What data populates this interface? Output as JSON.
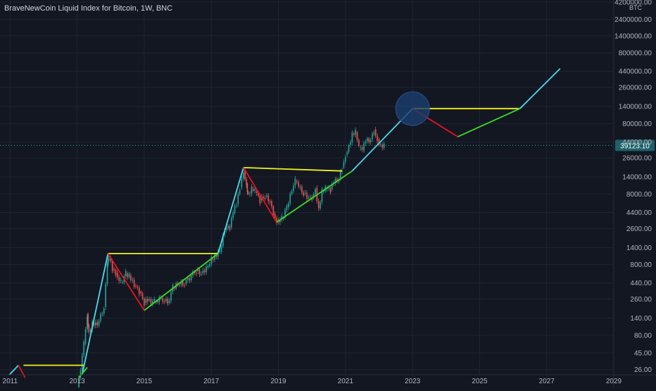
{
  "chart_data": {
    "type": "line",
    "title": "BraveNewCoin Liquid Index for Bitcoin, 1W, BNC",
    "currency_label": "BTC",
    "scale": "log",
    "x_ticks": [
      "2011",
      "2013",
      "2015",
      "2017",
      "2019",
      "2021",
      "2023",
      "2025",
      "2027",
      "2029"
    ],
    "y_ticks": [
      "4200000.00",
      "2400000.00",
      "1400000.00",
      "800000.00",
      "440000.00",
      "260000.00",
      "140000.00",
      "80000.00",
      "44000.00",
      "26000.00",
      "14000.00",
      "8000.00",
      "4400.00",
      "2600.00",
      "1400.00",
      "800.00",
      "440.00",
      "260.00",
      "140.00",
      "80.00",
      "45.00",
      "26.00"
    ],
    "last_price": "39123.10",
    "ylim": [
      22,
      4500000
    ],
    "xlim": [
      2010.7,
      2029.0
    ],
    "colors": {
      "background": "#131722",
      "grid": "#1f2433",
      "axis_text": "#b2b5be",
      "up_candle": "#26a69a",
      "down_candle": "#ef5350",
      "bull_line": "#4dd9ec",
      "bear_line": "#e8121e",
      "accum_line": "#3bdc24",
      "ath_line": "#f2f21a",
      "price_tag": "#1e6069",
      "circle": "#1c3f6e"
    },
    "series": [
      {
        "role": "bull-run",
        "color": "#4dd9ec",
        "points": [
          [
            2010.98,
            22
          ],
          [
            2011.25,
            30
          ]
        ]
      },
      {
        "role": "bear-market",
        "color": "#e8121e",
        "points": [
          [
            2011.25,
            30
          ],
          [
            2011.45,
            20
          ]
        ]
      },
      {
        "role": "bull-run",
        "color": "#4dd9ec",
        "points": [
          [
            2013.15,
            22
          ],
          [
            2013.92,
            1150
          ]
        ]
      },
      {
        "role": "accumulation",
        "color": "#3bdc24",
        "points": [
          [
            2013.05,
            20
          ],
          [
            2013.3,
            28
          ]
        ]
      },
      {
        "role": "ath-level",
        "color": "#f2f21a",
        "points": [
          [
            2011.4,
            30
          ],
          [
            2013.2,
            30
          ]
        ]
      },
      {
        "role": "ath-level",
        "color": "#f2f21a",
        "points": [
          [
            2013.92,
            1150
          ],
          [
            2017.2,
            1150
          ]
        ]
      },
      {
        "role": "bear-market",
        "color": "#e8121e",
        "points": [
          [
            2013.92,
            1150
          ],
          [
            2015.0,
            180
          ]
        ]
      },
      {
        "role": "accumulation",
        "color": "#3bdc24",
        "points": [
          [
            2015.0,
            180
          ],
          [
            2017.2,
            1150
          ]
        ]
      },
      {
        "role": "bull-run",
        "color": "#4dd9ec",
        "points": [
          [
            2017.2,
            1150
          ],
          [
            2017.96,
            19000
          ]
        ]
      },
      {
        "role": "ath-level",
        "color": "#f2f21a",
        "points": [
          [
            2017.96,
            19000
          ],
          [
            2020.9,
            17000
          ]
        ]
      },
      {
        "role": "bear-market",
        "color": "#e8121e",
        "points": [
          [
            2017.96,
            19000
          ],
          [
            2018.95,
            3200
          ]
        ]
      },
      {
        "role": "accumulation",
        "color": "#3bdc24",
        "points": [
          [
            2018.95,
            3200
          ],
          [
            2021.2,
            17000
          ]
        ]
      },
      {
        "role": "bull-run",
        "color": "#4dd9ec",
        "points": [
          [
            2021.2,
            17000
          ],
          [
            2023.0,
            130000
          ]
        ]
      },
      {
        "role": "ath-level",
        "color": "#f2f21a",
        "points": [
          [
            2023.0,
            130000
          ],
          [
            2026.2,
            130000
          ]
        ]
      },
      {
        "role": "bear-market",
        "color": "#e8121e",
        "points": [
          [
            2023.0,
            130000
          ],
          [
            2024.35,
            52000
          ]
        ]
      },
      {
        "role": "accumulation",
        "color": "#3bdc24",
        "points": [
          [
            2024.35,
            52000
          ],
          [
            2026.2,
            130000
          ]
        ]
      },
      {
        "role": "bull-run",
        "color": "#4dd9ec",
        "points": [
          [
            2026.2,
            130000
          ],
          [
            2027.4,
            480000
          ]
        ]
      }
    ],
    "price": [
      [
        2013.0,
        13
      ],
      [
        2013.2,
        60
      ],
      [
        2013.3,
        160
      ],
      [
        2013.35,
        90
      ],
      [
        2013.45,
        120
      ],
      [
        2013.6,
        110
      ],
      [
        2013.8,
        200
      ],
      [
        2013.9,
        800
      ],
      [
        2013.95,
        1000
      ],
      [
        2014.05,
        700
      ],
      [
        2014.15,
        620
      ],
      [
        2014.3,
        450
      ],
      [
        2014.45,
        600
      ],
      [
        2014.55,
        560
      ],
      [
        2014.7,
        400
      ],
      [
        2014.85,
        330
      ],
      [
        2015.0,
        230
      ],
      [
        2015.1,
        250
      ],
      [
        2015.3,
        240
      ],
      [
        2015.5,
        270
      ],
      [
        2015.7,
        230
      ],
      [
        2015.85,
        380
      ],
      [
        2016.0,
        420
      ],
      [
        2016.2,
        430
      ],
      [
        2016.4,
        560
      ],
      [
        2016.55,
        650
      ],
      [
        2016.7,
        610
      ],
      [
        2016.85,
        730
      ],
      [
        2017.0,
        950
      ],
      [
        2017.1,
        1100
      ],
      [
        2017.25,
        1200
      ],
      [
        2017.4,
        2500
      ],
      [
        2017.55,
        2700
      ],
      [
        2017.65,
        4300
      ],
      [
        2017.75,
        5800
      ],
      [
        2017.85,
        10000
      ],
      [
        2017.96,
        17500
      ],
      [
        2018.05,
        11000
      ],
      [
        2018.1,
        8000
      ],
      [
        2018.2,
        9500
      ],
      [
        2018.3,
        8700
      ],
      [
        2018.45,
        6500
      ],
      [
        2018.6,
        7400
      ],
      [
        2018.75,
        6400
      ],
      [
        2018.85,
        4200
      ],
      [
        2018.95,
        3400
      ],
      [
        2019.1,
        3600
      ],
      [
        2019.25,
        5200
      ],
      [
        2019.4,
        8800
      ],
      [
        2019.5,
        12300
      ],
      [
        2019.6,
        10000
      ],
      [
        2019.75,
        8200
      ],
      [
        2019.9,
        7200
      ],
      [
        2020.0,
        7300
      ],
      [
        2020.1,
        9800
      ],
      [
        2020.2,
        5000
      ],
      [
        2020.3,
        8800
      ],
      [
        2020.4,
        9400
      ],
      [
        2020.55,
        9200
      ],
      [
        2020.65,
        11500
      ],
      [
        2020.8,
        13500
      ],
      [
        2020.9,
        19000
      ],
      [
        2021.0,
        29000
      ],
      [
        2021.1,
        40000
      ],
      [
        2021.2,
        57000
      ],
      [
        2021.3,
        60000
      ],
      [
        2021.4,
        36000
      ],
      [
        2021.5,
        33000
      ],
      [
        2021.6,
        45000
      ],
      [
        2021.75,
        48000
      ],
      [
        2021.85,
        66000
      ],
      [
        2021.95,
        48000
      ],
      [
        2022.05,
        40000
      ],
      [
        2022.15,
        39123.1
      ]
    ],
    "highlight_circle": {
      "x": 2023.0,
      "y": 130000
    }
  }
}
